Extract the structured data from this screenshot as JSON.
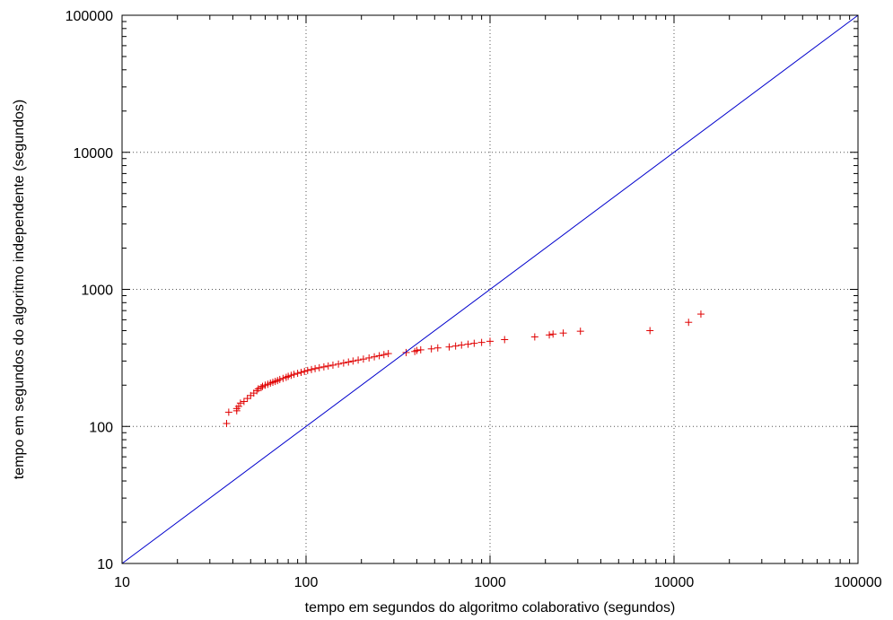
{
  "chart_data": {
    "type": "scatter",
    "xlabel": "tempo em segundos do algoritmo colaborativo (segundos)",
    "ylabel": "tempo em segundos do algoritmo independente (segundos)",
    "x_scale": "log",
    "y_scale": "log",
    "xlim": [
      10,
      100000
    ],
    "ylim": [
      10,
      100000
    ],
    "x_ticks": [
      10,
      100,
      1000,
      10000,
      100000
    ],
    "y_ticks": [
      10,
      100,
      1000,
      10000,
      100000
    ],
    "x_tick_labels": [
      "10",
      "100",
      "1000",
      "10000",
      "100000"
    ],
    "y_tick_labels": [
      "10",
      "100",
      "1000",
      "10000",
      "100000"
    ],
    "grid": true,
    "grid_style": "dotted",
    "series": [
      {
        "marker": "+",
        "color": "#e00000",
        "points": [
          [
            37,
            105
          ],
          [
            38,
            127
          ],
          [
            42,
            130
          ],
          [
            42,
            135
          ],
          [
            43,
            140
          ],
          [
            44,
            148
          ],
          [
            46,
            152
          ],
          [
            48,
            160
          ],
          [
            50,
            168
          ],
          [
            52,
            175
          ],
          [
            54,
            182
          ],
          [
            55,
            188
          ],
          [
            57,
            192
          ],
          [
            58,
            196
          ],
          [
            60,
            200
          ],
          [
            62,
            203
          ],
          [
            64,
            207
          ],
          [
            66,
            210
          ],
          [
            68,
            213
          ],
          [
            70,
            216
          ],
          [
            72,
            220
          ],
          [
            75,
            224
          ],
          [
            78,
            228
          ],
          [
            80,
            232
          ],
          [
            83,
            236
          ],
          [
            86,
            240
          ],
          [
            90,
            244
          ],
          [
            94,
            248
          ],
          [
            98,
            252
          ],
          [
            102,
            256
          ],
          [
            107,
            260
          ],
          [
            112,
            264
          ],
          [
            118,
            268
          ],
          [
            125,
            272
          ],
          [
            132,
            276
          ],
          [
            140,
            280
          ],
          [
            150,
            285
          ],
          [
            160,
            290
          ],
          [
            170,
            295
          ],
          [
            180,
            300
          ],
          [
            192,
            305
          ],
          [
            205,
            310
          ],
          [
            220,
            316
          ],
          [
            235,
            322
          ],
          [
            250,
            328
          ],
          [
            265,
            334
          ],
          [
            280,
            340
          ],
          [
            350,
            346
          ],
          [
            390,
            352
          ],
          [
            400,
            358
          ],
          [
            420,
            362
          ],
          [
            480,
            368
          ],
          [
            520,
            374
          ],
          [
            600,
            380
          ],
          [
            650,
            386
          ],
          [
            700,
            392
          ],
          [
            760,
            398
          ],
          [
            820,
            404
          ],
          [
            900,
            410
          ],
          [
            1000,
            418
          ],
          [
            1200,
            430
          ],
          [
            1750,
            450
          ],
          [
            2100,
            465
          ],
          [
            2200,
            472
          ],
          [
            2500,
            480
          ],
          [
            3100,
            495
          ],
          [
            7400,
            500
          ],
          [
            12000,
            575
          ],
          [
            14000,
            660
          ]
        ]
      },
      {
        "type": "line",
        "color": "#0000cc",
        "points": [
          [
            10,
            10
          ],
          [
            100000,
            100000
          ]
        ]
      }
    ]
  }
}
